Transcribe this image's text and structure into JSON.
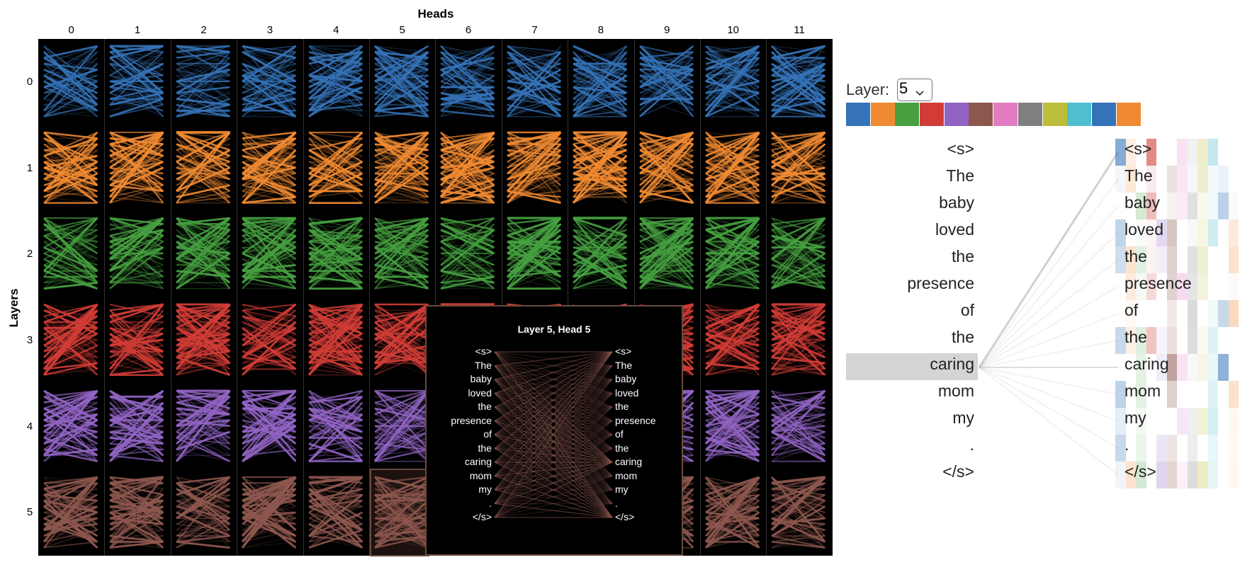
{
  "model_view": {
    "heads_title": "Heads",
    "layers_title": "Layers",
    "head_labels": [
      "0",
      "1",
      "2",
      "3",
      "4",
      "5",
      "6",
      "7",
      "8",
      "9",
      "10",
      "11"
    ],
    "layer_labels": [
      "0",
      "1",
      "2",
      "3",
      "4",
      "5"
    ],
    "layer_colors": [
      "#3573b8",
      "#f08a32",
      "#46a040",
      "#d13c36",
      "#9164c4",
      "#8d574e"
    ],
    "tooltip": {
      "title": "Layer 5, Head 5",
      "tokens": [
        "<s>",
        "The",
        "baby",
        "loved",
        "the",
        "presence",
        "of",
        "the",
        "caring",
        "mom",
        "my",
        ".",
        "</s>"
      ]
    }
  },
  "head_view": {
    "layer_label": "Layer:",
    "layer_value": "5",
    "swatch_colors": [
      "#3573b8",
      "#f08a32",
      "#46a040",
      "#d13c36",
      "#9164c4",
      "#8d574e",
      "#e17cc2",
      "#7f7f7f",
      "#bcbd3a",
      "#4fbfcf",
      "#3573b8",
      "#f08a32"
    ],
    "tokens_left": [
      "<s>",
      "The",
      "baby",
      "loved",
      "the",
      "presence",
      "of",
      "the",
      "caring",
      "mom",
      "my",
      ".",
      "</s>"
    ],
    "tokens_right": [
      "<s>",
      "The",
      "baby",
      "loved",
      "the",
      "presence",
      "of",
      "the",
      "caring",
      "mom",
      "my",
      ".",
      "</s>"
    ],
    "selected_token": "caring"
  }
}
